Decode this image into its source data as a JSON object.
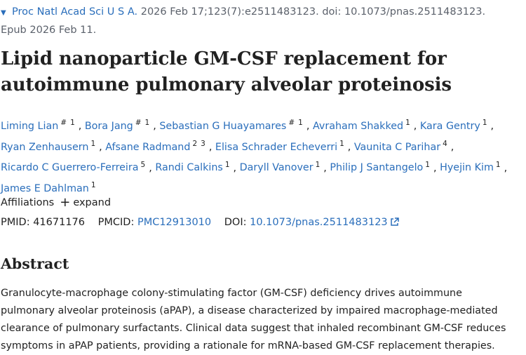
{
  "citation": {
    "journal": "Proc Natl Acad Sci U S A.",
    "details_line1": " 2026 Feb 17;123(7):e2511483123. doi: 10.1073/pnas.2511483123.",
    "details_line2": "Epub 2026 Feb 11."
  },
  "article": {
    "title_line1": "Lipid nanoparticle GM-CSF replacement for",
    "title_line2": "autoimmune pulmonary alveolar proteinosis"
  },
  "authors": [
    {
      "name": "Liming Lian",
      "sup": [
        "#",
        "1"
      ]
    },
    {
      "name": "Bora Jang",
      "sup": [
        "#",
        "1"
      ]
    },
    {
      "name": "Sebastian G Huayamares",
      "sup": [
        "#",
        "1"
      ]
    },
    {
      "name": "Avraham Shakked",
      "sup": [
        "1"
      ]
    },
    {
      "name": "Kara Gentry",
      "sup": [
        "1"
      ]
    },
    {
      "name": "Ryan Zenhausern",
      "sup": [
        "1"
      ]
    },
    {
      "name": "Afsane Radmand",
      "sup": [
        "2",
        "3"
      ]
    },
    {
      "name": "Elisa Schrader Echeverri",
      "sup": [
        "1"
      ]
    },
    {
      "name": "Vaunita C Parihar",
      "sup": [
        "4"
      ]
    },
    {
      "name": "Ricardo C Guerrero-Ferreira",
      "sup": [
        "5"
      ]
    },
    {
      "name": "Randi Calkins",
      "sup": [
        "1"
      ]
    },
    {
      "name": "Daryll Vanover",
      "sup": [
        "1"
      ]
    },
    {
      "name": "Philip J Santangelo",
      "sup": [
        "1"
      ]
    },
    {
      "name": "Hyejin Kim",
      "sup": [
        "1"
      ]
    },
    {
      "name": "James E Dahlman",
      "sup": [
        "1"
      ]
    }
  ],
  "affiliations": {
    "label": "Affiliations",
    "expand_label": "expand"
  },
  "identifiers": {
    "pmid_label": "PMID:",
    "pmid": "41671176",
    "pmcid_label": "PMCID:",
    "pmcid": "PMC12913010",
    "doi_label": "DOI:",
    "doi": "10.1073/pnas.2511483123"
  },
  "abstract": {
    "heading": "Abstract",
    "lines": [
      "Granulocyte-macrophage colony-stimulating factor (GM-CSF) deficiency drives autoimmune",
      "pulmonary alveolar proteinosis (aPAP), a disease characterized by impaired macrophage-mediated",
      "clearance of pulmonary surfactants. Clinical data suggest that inhaled recombinant GM-CSF reduces",
      "symptoms in aPAP patients, providing a rationale for mRNA-based GM-CSF replacement therapies."
    ]
  },
  "colors": {
    "link": "#2a6ebb",
    "text": "#212121",
    "muted": "#5b616b"
  },
  "icons": {
    "citation_toggle": "triangle-down-icon",
    "external_link": "external-link-icon",
    "expand": "plus-icon"
  }
}
